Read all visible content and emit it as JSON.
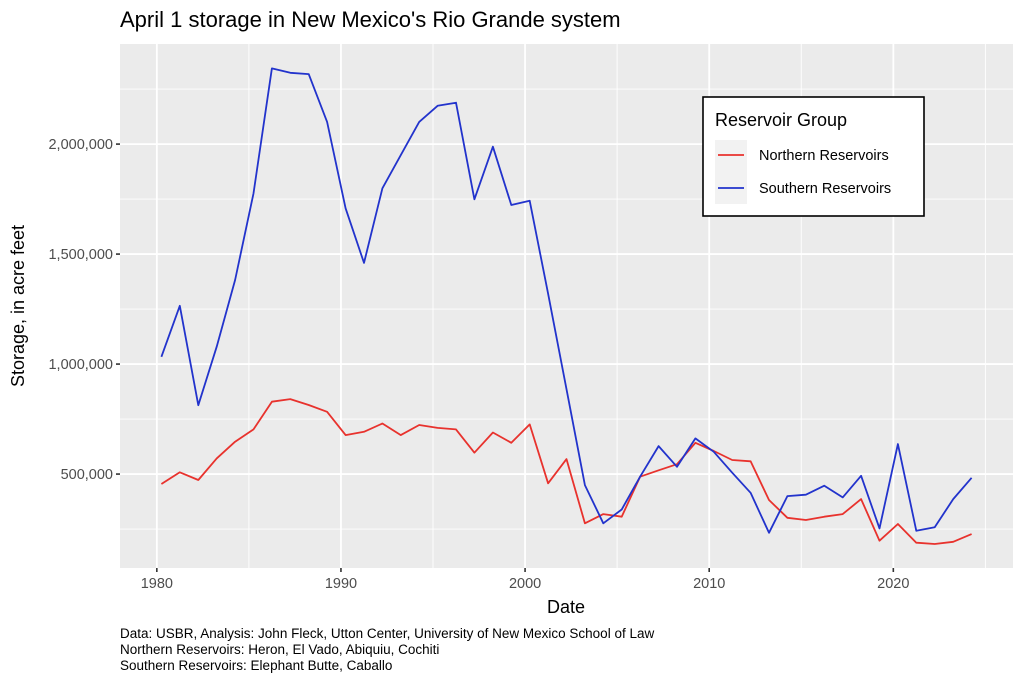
{
  "chart_data": {
    "type": "line",
    "title": "April 1 storage in New Mexico's Rio Grande system",
    "xlabel": "Date",
    "ylabel": "Storage, in acre feet",
    "xlim": [
      1978,
      2026.5
    ],
    "ylim": [
      73000,
      2455000
    ],
    "x_ticks": [
      1980,
      1990,
      2000,
      2010,
      2020
    ],
    "x_tick_labels": [
      "1980",
      "1990",
      "2000",
      "2010",
      "2020"
    ],
    "x_minor_ticks": [
      1985,
      1995,
      2005,
      2015,
      2025
    ],
    "y_ticks": [
      500000,
      1000000,
      1500000,
      2000000
    ],
    "y_tick_labels": [
      "500,000",
      "1,000,000",
      "1,500,000",
      "2,000,000"
    ],
    "y_minor_ticks": [
      250000,
      750000,
      1250000,
      1750000,
      2250000
    ],
    "grid": true,
    "legend": {
      "title": "Reservoir Group",
      "placement": "top-right-inside"
    },
    "x": [
      1980,
      1981,
      1982,
      1983,
      1984,
      1985,
      1986,
      1987,
      1988,
      1989,
      1990,
      1991,
      1992,
      1993,
      1994,
      1995,
      1996,
      1997,
      1998,
      1999,
      2000,
      2001,
      2002,
      2003,
      2004,
      2005,
      2006,
      2007,
      2008,
      2009,
      2010,
      2011,
      2012,
      2013,
      2014,
      2015,
      2016,
      2017,
      2018,
      2019,
      2020,
      2021,
      2022,
      2023,
      2024
    ],
    "series": [
      {
        "name": "Northern Reservoirs",
        "color": "#e8322d",
        "values": [
          455000,
          508000,
          473000,
          571000,
          647000,
          703000,
          829000,
          841000,
          814000,
          783000,
          677000,
          692000,
          730000,
          677000,
          723000,
          710000,
          703000,
          597000,
          689000,
          642000,
          726000,
          458000,
          568000,
          276000,
          318000,
          306000,
          488000,
          517000,
          545000,
          642000,
          605000,
          564000,
          558000,
          382000,
          301000,
          291000,
          306000,
          318000,
          386000,
          197000,
          273000,
          188000,
          182000,
          192000,
          227000
        ]
      },
      {
        "name": "Southern Reservoirs",
        "color": "#2233cc",
        "values": [
          1033000,
          1265000,
          813000,
          1079000,
          1382000,
          1776000,
          2344000,
          2324000,
          2318000,
          2101000,
          1708000,
          1460000,
          1799000,
          1950000,
          2101000,
          2174000,
          2188000,
          1749000,
          1988000,
          1723000,
          1742000,
          1320000,
          886000,
          450000,
          276000,
          339000,
          488000,
          627000,
          533000,
          662000,
          601000,
          506000,
          415000,
          233000,
          400000,
          406000,
          447000,
          394000,
          492000,
          253000,
          636000,
          242000,
          258000,
          386000,
          483000
        ]
      }
    ],
    "caption_lines": [
      "Data: USBR, Analysis: John Fleck, Utton Center, University of New Mexico School of Law",
      "Northern Reservoirs: Heron, El Vado, Abiquiu, Cochiti",
      "Southern Reservoirs: Elephant Butte, Caballo"
    ]
  },
  "colors": {
    "panel_background": "#ebebeb",
    "grid": "#ffffff"
  }
}
